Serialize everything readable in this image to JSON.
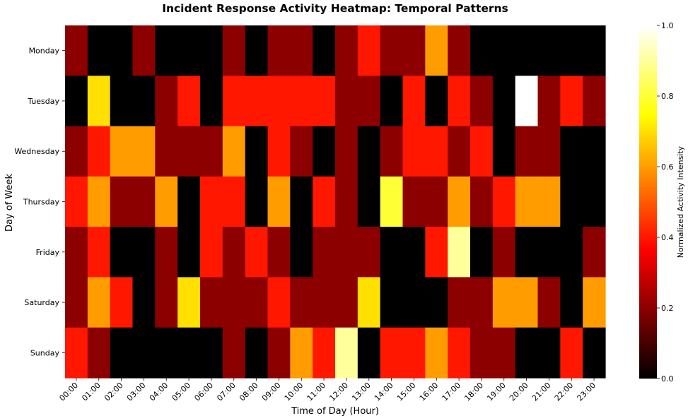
{
  "chart_data": {
    "type": "heatmap",
    "title": "Incident Response Activity Heatmap: Temporal Patterns",
    "xlabel": "Time of Day (Hour)",
    "ylabel": "Day of Week",
    "x": [
      "00:00",
      "01:00",
      "02:00",
      "03:00",
      "04:00",
      "05:00",
      "06:00",
      "07:00",
      "08:00",
      "09:00",
      "10:00",
      "11:00",
      "12:00",
      "13:00",
      "14:00",
      "15:00",
      "16:00",
      "17:00",
      "18:00",
      "19:00",
      "20:00",
      "21:00",
      "22:00",
      "23:00"
    ],
    "y": [
      "Monday",
      "Tuesday",
      "Wednesday",
      "Thursday",
      "Friday",
      "Saturday",
      "Sunday"
    ],
    "values": [
      [
        0.2,
        0.0,
        0.0,
        0.2,
        0.0,
        0.0,
        0.0,
        0.2,
        0.0,
        0.2,
        0.2,
        0.0,
        0.2,
        0.4,
        0.2,
        0.2,
        0.6,
        0.2,
        0.0,
        0.0,
        0.0,
        0.0,
        0.0,
        0.0
      ],
      [
        0.0,
        0.7,
        0.0,
        0.0,
        0.2,
        0.4,
        0.0,
        0.4,
        0.4,
        0.4,
        0.4,
        0.4,
        0.2,
        0.2,
        0.0,
        0.4,
        0.0,
        0.4,
        0.2,
        0.0,
        1.0,
        0.2,
        0.4,
        0.2
      ],
      [
        0.2,
        0.4,
        0.6,
        0.6,
        0.2,
        0.2,
        0.2,
        0.6,
        0.0,
        0.4,
        0.2,
        0.0,
        0.2,
        0.0,
        0.2,
        0.4,
        0.4,
        0.2,
        0.4,
        0.0,
        0.2,
        0.2,
        0.0,
        0.0
      ],
      [
        0.4,
        0.6,
        0.2,
        0.2,
        0.6,
        0.0,
        0.4,
        0.4,
        0.0,
        0.6,
        0.0,
        0.4,
        0.2,
        0.0,
        0.8,
        0.2,
        0.2,
        0.6,
        0.2,
        0.4,
        0.6,
        0.6,
        0.0,
        0.0
      ],
      [
        0.2,
        0.4,
        0.0,
        0.0,
        0.2,
        0.0,
        0.4,
        0.2,
        0.4,
        0.2,
        0.0,
        0.2,
        0.2,
        0.2,
        0.0,
        0.0,
        0.4,
        0.9,
        0.0,
        0.2,
        0.0,
        0.0,
        0.0,
        0.2
      ],
      [
        0.2,
        0.6,
        0.4,
        0.0,
        0.2,
        0.7,
        0.2,
        0.2,
        0.2,
        0.4,
        0.2,
        0.2,
        0.2,
        0.7,
        0.0,
        0.0,
        0.0,
        0.2,
        0.2,
        0.6,
        0.6,
        0.2,
        0.0,
        0.6
      ],
      [
        0.4,
        0.2,
        0.0,
        0.0,
        0.0,
        0.0,
        0.0,
        0.2,
        0.0,
        0.2,
        0.6,
        0.4,
        0.9,
        0.0,
        0.4,
        0.4,
        0.6,
        0.4,
        0.2,
        0.2,
        0.0,
        0.0,
        0.4,
        0.0
      ]
    ],
    "vmin": 0.0,
    "vmax": 1.0,
    "colormap": "hot",
    "colorbar": {
      "label": "Normalized Activity Intensity",
      "ticks": [
        "0.0",
        "0.2",
        "0.4",
        "0.6",
        "0.8",
        "1.0"
      ]
    }
  }
}
